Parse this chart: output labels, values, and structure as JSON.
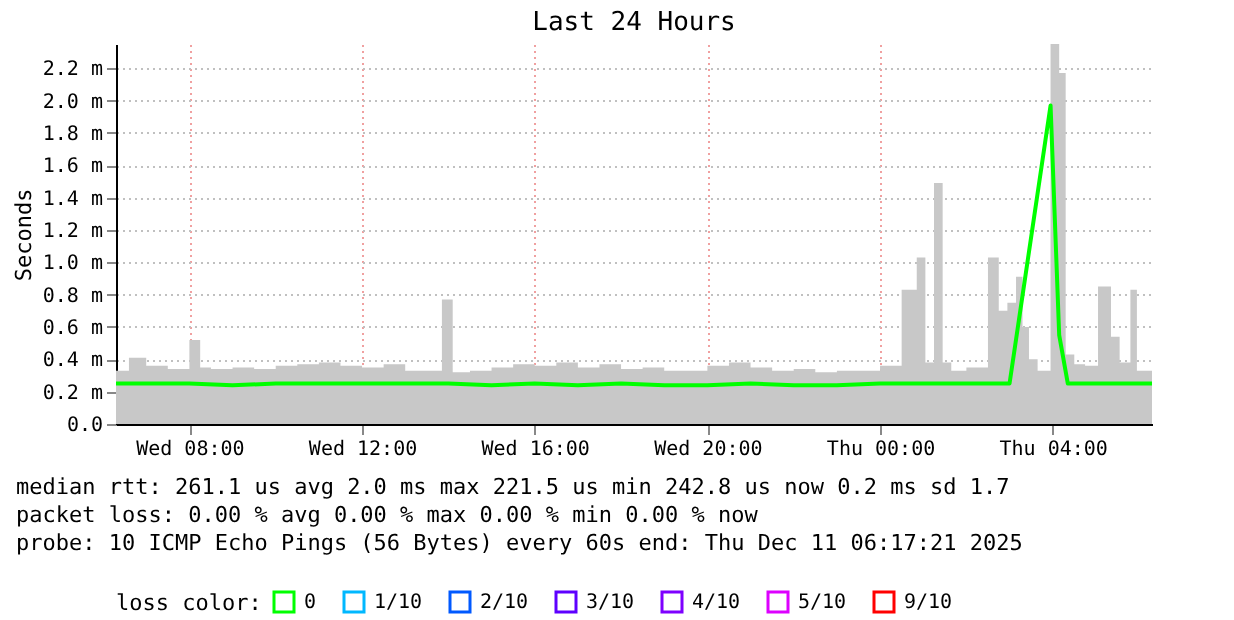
{
  "chart_data": {
    "type": "area",
    "title": "Last 24 Hours",
    "ylabel": "Seconds",
    "legend_title": "loss color:",
    "xlim": [
      "2025-12-10T06:18",
      "2025-12-11T06:18"
    ],
    "xticks": [
      {
        "value": "2025-12-10T08:00",
        "label": "Wed 08:00"
      },
      {
        "value": "2025-12-10T12:00",
        "label": "Wed 12:00"
      },
      {
        "value": "2025-12-10T16:00",
        "label": "Wed 16:00"
      },
      {
        "value": "2025-12-10T20:00",
        "label": "Wed 20:00"
      },
      {
        "value": "2025-12-11T00:00",
        "label": "Thu 00:00"
      },
      {
        "value": "2025-12-11T04:00",
        "label": "Thu 04:00"
      }
    ],
    "ylim": [
      0,
      2.35
    ],
    "yticks": [
      {
        "value": 0,
        "label": "0.0"
      },
      {
        "value": 0.2,
        "label": "0.2 m"
      },
      {
        "value": 0.4,
        "label": "0.4 m"
      },
      {
        "value": 0.6,
        "label": "0.6 m"
      },
      {
        "value": 0.8,
        "label": "0.8 m"
      },
      {
        "value": 1.0,
        "label": "1.0 m"
      },
      {
        "value": 1.2,
        "label": "1.2 m"
      },
      {
        "value": 1.4,
        "label": "1.4 m"
      },
      {
        "value": 1.6,
        "label": "1.6 m"
      },
      {
        "value": 1.8,
        "label": "1.8 m"
      },
      {
        "value": 2.0,
        "label": "2.0 m"
      },
      {
        "value": 2.2,
        "label": "2.2 m"
      }
    ],
    "grid": true,
    "legend": "bottom",
    "series": [
      {
        "color": "#c8c8c8",
        "x": [
          "2025-12-10T06:18",
          "2025-12-10T06:36",
          "2025-12-10T07:00",
          "2025-12-10T07:30",
          "2025-12-10T08:00",
          "2025-12-10T08:15",
          "2025-12-10T08:30",
          "2025-12-10T09:00",
          "2025-12-10T09:30",
          "2025-12-10T10:00",
          "2025-12-10T10:30",
          "2025-12-10T11:00",
          "2025-12-10T11:30",
          "2025-12-10T12:00",
          "2025-12-10T12:30",
          "2025-12-10T13:00",
          "2025-12-10T13:30",
          "2025-12-10T13:51",
          "2025-12-10T14:06",
          "2025-12-10T14:30",
          "2025-12-10T15:00",
          "2025-12-10T15:30",
          "2025-12-10T16:00",
          "2025-12-10T16:30",
          "2025-12-10T17:00",
          "2025-12-10T17:30",
          "2025-12-10T18:00",
          "2025-12-10T18:30",
          "2025-12-10T19:00",
          "2025-12-10T19:30",
          "2025-12-10T20:00",
          "2025-12-10T20:30",
          "2025-12-10T21:00",
          "2025-12-10T21:30",
          "2025-12-10T22:00",
          "2025-12-10T22:30",
          "2025-12-10T23:00",
          "2025-12-10T23:30",
          "2025-12-11T00:00",
          "2025-12-11T00:30",
          "2025-12-11T00:51",
          "2025-12-11T01:03",
          "2025-12-11T01:15",
          "2025-12-11T01:27",
          "2025-12-11T01:39",
          "2025-12-11T02:00",
          "2025-12-11T02:30",
          "2025-12-11T02:45",
          "2025-12-11T02:57",
          "2025-12-11T03:09",
          "2025-12-11T03:18",
          "2025-12-11T03:27",
          "2025-12-11T03:39",
          "2025-12-11T03:57",
          "2025-12-11T04:09",
          "2025-12-11T04:18",
          "2025-12-11T04:30",
          "2025-12-11T04:45",
          "2025-12-11T05:03",
          "2025-12-11T05:21",
          "2025-12-11T05:33",
          "2025-12-11T05:48",
          "2025-12-11T05:57",
          "2025-12-11T06:18"
        ],
        "values": [
          0.33,
          0.41,
          0.36,
          0.34,
          0.52,
          0.35,
          0.34,
          0.35,
          0.34,
          0.36,
          0.37,
          0.38,
          0.36,
          0.35,
          0.37,
          0.33,
          0.33,
          0.77,
          0.32,
          0.33,
          0.35,
          0.37,
          0.36,
          0.38,
          0.35,
          0.37,
          0.34,
          0.35,
          0.33,
          0.33,
          0.36,
          0.38,
          0.35,
          0.33,
          0.34,
          0.32,
          0.33,
          0.33,
          0.36,
          0.83,
          1.03,
          0.38,
          1.49,
          0.38,
          0.33,
          0.35,
          1.03,
          0.7,
          0.75,
          0.91,
          0.6,
          0.4,
          0.33,
          2.35,
          2.17,
          0.43,
          0.37,
          0.36,
          0.85,
          0.54,
          0.38,
          0.83,
          0.33,
          0.33
        ]
      },
      {
        "type": "line",
        "name": "0",
        "color": "#00ff00",
        "x": [
          "2025-12-10T06:18",
          "2025-12-10T07:00",
          "2025-12-10T08:00",
          "2025-12-10T09:00",
          "2025-12-10T10:00",
          "2025-12-10T11:00",
          "2025-12-10T12:00",
          "2025-12-10T13:00",
          "2025-12-10T14:00",
          "2025-12-10T15:00",
          "2025-12-10T16:00",
          "2025-12-10T17:00",
          "2025-12-10T18:00",
          "2025-12-10T19:00",
          "2025-12-10T20:00",
          "2025-12-10T21:00",
          "2025-12-10T22:00",
          "2025-12-10T23:00",
          "2025-12-11T00:00",
          "2025-12-11T01:00",
          "2025-12-11T02:00",
          "2025-12-11T03:00",
          "2025-12-11T03:57",
          "2025-12-11T04:09",
          "2025-12-11T04:21",
          "2025-12-11T05:00",
          "2025-12-11T06:18"
        ],
        "values": [
          0.25,
          0.25,
          0.25,
          0.24,
          0.25,
          0.25,
          0.25,
          0.25,
          0.25,
          0.24,
          0.25,
          0.24,
          0.25,
          0.24,
          0.24,
          0.25,
          0.24,
          0.24,
          0.25,
          0.25,
          0.25,
          0.25,
          1.97,
          0.55,
          0.25,
          0.25,
          0.25
        ]
      },
      {
        "type": "line",
        "name": "1/10",
        "color": "#00b8ff"
      },
      {
        "type": "line",
        "name": "2/10",
        "color": "#0059ff"
      },
      {
        "type": "line",
        "name": "3/10",
        "color": "#5e00ff"
      },
      {
        "type": "line",
        "name": "4/10",
        "color": "#7e00ff"
      },
      {
        "type": "line",
        "name": "5/10",
        "color": "#dd00ff"
      },
      {
        "type": "line",
        "name": "9/10",
        "color": "#ff0000"
      }
    ],
    "annotations": [
      "median rtt:  261.1 us avg   2.0 ms max   221.5 us min   242.8 us now   0.2 ms sd   1.7",
      "packet loss: 0.00 % avg   0.00 % max   0.00 % min   0.00 % now",
      "probe:       10 ICMP Echo Pings (56 Bytes) every 60s   end: Thu Dec 11 06:17:21 2025"
    ]
  }
}
